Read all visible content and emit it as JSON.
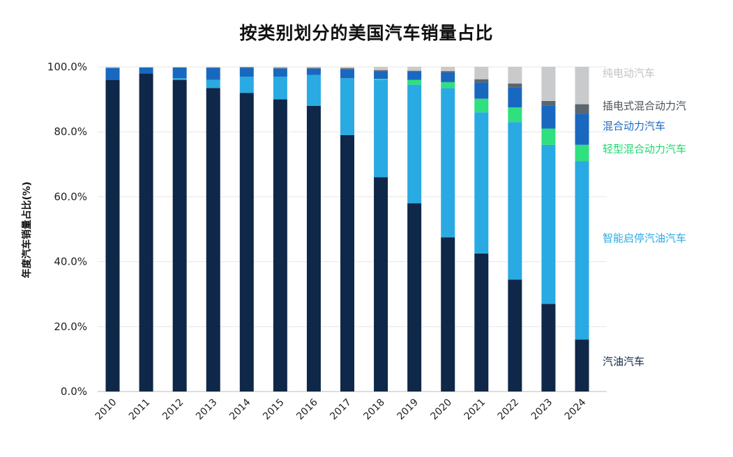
{
  "chart_data": {
    "type": "bar",
    "stacked": true,
    "title": "按类别划分的美国汽车销量占比",
    "xlabel": "",
    "ylabel": "年度汽车销量占比(%)",
    "ylim": [
      0,
      100
    ],
    "yticks": [
      "0.0%",
      "20.0%",
      "40.0%",
      "60.0%",
      "80.0%",
      "100.0%"
    ],
    "ytick_values": [
      0,
      20,
      40,
      60,
      80,
      100
    ],
    "grid": true,
    "legend": "right, labels beside the last bar",
    "categories": [
      "2010",
      "2011",
      "2012",
      "2013",
      "2014",
      "2015",
      "2016",
      "2017",
      "2018",
      "2019",
      "2020",
      "2021",
      "2022",
      "2023",
      "2024"
    ],
    "series": [
      {
        "name": "汽油汽车",
        "color": "#0f2748",
        "values": [
          96,
          98,
          96,
          93.5,
          92,
          90,
          88,
          79,
          66,
          58,
          47.5,
          42.5,
          34.5,
          27,
          16
        ]
      },
      {
        "name": "智能启停汽油汽车",
        "color": "#2aaae2",
        "values": [
          0,
          0,
          0.5,
          2.5,
          5,
          7,
          9.5,
          17.5,
          30,
          36.5,
          46,
          43.5,
          48.5,
          49,
          55
        ]
      },
      {
        "name": "轻型混合动力汽车",
        "color": "#2fe07e",
        "values": [
          0,
          0,
          0,
          0,
          0,
          0,
          0,
          0,
          0.3,
          1.5,
          1.8,
          4.2,
          4.5,
          5,
          5
        ]
      },
      {
        "name": "混合动力汽车",
        "color": "#1868c0",
        "values": [
          3.7,
          1.8,
          3.3,
          3.7,
          2.7,
          2.5,
          2,
          2.7,
          2.2,
          2.5,
          3,
          5,
          6.2,
          7,
          9.5
        ]
      },
      {
        "name": "插电式混合动力汽",
        "color": "#5c6670",
        "values": [
          0,
          0,
          0,
          0.1,
          0.2,
          0.2,
          0.2,
          0.4,
          0.5,
          0.3,
          0.4,
          1,
          1.2,
          1.5,
          3
        ]
      },
      {
        "name": "纯电动汽车",
        "color": "#c8cacc",
        "values": [
          0.3,
          0.2,
          0.2,
          0.2,
          0.1,
          0.3,
          0.3,
          0.4,
          1,
          1.2,
          1.3,
          3.8,
          5.1,
          10.5,
          11.5
        ]
      }
    ]
  }
}
